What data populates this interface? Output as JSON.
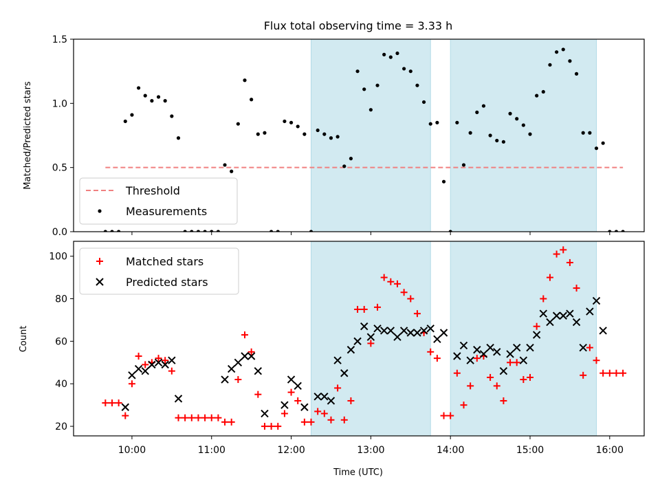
{
  "chart_data": [
    {
      "type": "scatter",
      "title": "Flux total observing time = 3.33 h",
      "ylabel": "Matched/Predicted stars",
      "ylim": [
        0,
        1.5
      ],
      "yticks": [
        0.0,
        0.5,
        1.0,
        1.5
      ],
      "ytick_labels": [
        "0.0",
        "0.5",
        "1.0",
        "1.5"
      ],
      "legend_position": "lower-left",
      "shaded_intervals": [
        [
          "12:15",
          "13:45"
        ],
        [
          "14:00",
          "15:50"
        ]
      ],
      "shade_color": "#add8e6",
      "threshold": {
        "name": "Threshold",
        "value": 0.5,
        "x_start": "09:40",
        "x_end": "16:10",
        "color": "#f08080"
      },
      "series": [
        {
          "name": "Measurements",
          "color": "#000000",
          "marker": "dot",
          "points": [
            [
              "09:40",
              0.0
            ],
            [
              "09:45",
              0.0
            ],
            [
              "09:50",
              0.0
            ],
            [
              "09:55",
              0.86
            ],
            [
              "10:00",
              0.91
            ],
            [
              "10:05",
              1.12
            ],
            [
              "10:10",
              1.06
            ],
            [
              "10:15",
              1.02
            ],
            [
              "10:20",
              1.05
            ],
            [
              "10:25",
              1.02
            ],
            [
              "10:30",
              0.9
            ],
            [
              "10:35",
              0.73
            ],
            [
              "10:40",
              0.0
            ],
            [
              "10:45",
              0.0
            ],
            [
              "10:50",
              0.0
            ],
            [
              "10:55",
              0.0
            ],
            [
              "11:00",
              0.0
            ],
            [
              "11:05",
              0.0
            ],
            [
              "11:10",
              0.52
            ],
            [
              "11:15",
              0.47
            ],
            [
              "11:20",
              0.84
            ],
            [
              "11:25",
              1.18
            ],
            [
              "11:30",
              1.03
            ],
            [
              "11:35",
              0.76
            ],
            [
              "11:40",
              0.77
            ],
            [
              "11:45",
              0.0
            ],
            [
              "11:50",
              0.0
            ],
            [
              "11:55",
              0.86
            ],
            [
              "12:00",
              0.85
            ],
            [
              "12:05",
              0.82
            ],
            [
              "12:10",
              0.76
            ],
            [
              "12:15",
              0.0
            ],
            [
              "12:20",
              0.79
            ],
            [
              "12:25",
              0.76
            ],
            [
              "12:30",
              0.73
            ],
            [
              "12:35",
              0.74
            ],
            [
              "12:40",
              0.51
            ],
            [
              "12:45",
              0.57
            ],
            [
              "12:50",
              1.25
            ],
            [
              "12:55",
              1.11
            ],
            [
              "13:00",
              0.95
            ],
            [
              "13:05",
              1.14
            ],
            [
              "13:10",
              1.38
            ],
            [
              "13:15",
              1.36
            ],
            [
              "13:20",
              1.39
            ],
            [
              "13:25",
              1.27
            ],
            [
              "13:30",
              1.25
            ],
            [
              "13:35",
              1.14
            ],
            [
              "13:40",
              1.01
            ],
            [
              "13:45",
              0.84
            ],
            [
              "13:50",
              0.85
            ],
            [
              "13:55",
              0.39
            ],
            [
              "14:00",
              0.0
            ],
            [
              "14:05",
              0.85
            ],
            [
              "14:10",
              0.52
            ],
            [
              "14:15",
              0.77
            ],
            [
              "14:20",
              0.93
            ],
            [
              "14:25",
              0.98
            ],
            [
              "14:30",
              0.75
            ],
            [
              "14:35",
              0.71
            ],
            [
              "14:40",
              0.7
            ],
            [
              "14:45",
              0.92
            ],
            [
              "14:50",
              0.88
            ],
            [
              "14:55",
              0.83
            ],
            [
              "15:00",
              0.76
            ],
            [
              "15:05",
              1.06
            ],
            [
              "15:10",
              1.09
            ],
            [
              "15:15",
              1.3
            ],
            [
              "15:20",
              1.4
            ],
            [
              "15:25",
              1.42
            ],
            [
              "15:30",
              1.33
            ],
            [
              "15:35",
              1.23
            ],
            [
              "15:40",
              0.77
            ],
            [
              "15:45",
              0.77
            ],
            [
              "15:50",
              0.65
            ],
            [
              "15:55",
              0.69
            ],
            [
              "16:00",
              0.0
            ],
            [
              "16:05",
              0.0
            ],
            [
              "16:10",
              0.0
            ]
          ]
        }
      ]
    },
    {
      "type": "scatter",
      "xlabel": "Time (UTC)",
      "ylabel": "Count",
      "ylim": [
        15.5,
        107
      ],
      "yticks": [
        20,
        40,
        60,
        80,
        100
      ],
      "ytick_labels": [
        "20",
        "40",
        "60",
        "80",
        "100"
      ],
      "xticks": [
        "10:00",
        "11:00",
        "12:00",
        "13:00",
        "14:00",
        "15:00",
        "16:00"
      ],
      "xtick_labels": [
        "10:00",
        "11:00",
        "12:00",
        "13:00",
        "14:00",
        "15:00",
        "16:00"
      ],
      "xlim": [
        "09:16",
        "16:26"
      ],
      "legend_position": "upper-left",
      "shaded_intervals": [
        [
          "12:15",
          "13:45"
        ],
        [
          "14:00",
          "15:50"
        ]
      ],
      "shade_color": "#add8e6",
      "series": [
        {
          "name": "Matched stars",
          "color": "#ff0000",
          "marker": "plus",
          "points": [
            [
              "09:40",
              31
            ],
            [
              "09:45",
              31
            ],
            [
              "09:50",
              31
            ],
            [
              "09:55",
              25
            ],
            [
              "10:00",
              40
            ],
            [
              "10:05",
              53
            ],
            [
              "10:10",
              49
            ],
            [
              "10:15",
              50
            ],
            [
              "10:20",
              52
            ],
            [
              "10:25",
              51
            ],
            [
              "10:30",
              46
            ],
            [
              "10:35",
              24
            ],
            [
              "10:40",
              24
            ],
            [
              "10:45",
              24
            ],
            [
              "10:50",
              24
            ],
            [
              "10:55",
              24
            ],
            [
              "11:00",
              24
            ],
            [
              "11:05",
              24
            ],
            [
              "11:10",
              22
            ],
            [
              "11:15",
              22
            ],
            [
              "11:20",
              42
            ],
            [
              "11:25",
              63
            ],
            [
              "11:30",
              55
            ],
            [
              "11:35",
              35
            ],
            [
              "11:40",
              20
            ],
            [
              "11:45",
              20
            ],
            [
              "11:50",
              20
            ],
            [
              "11:55",
              26
            ],
            [
              "12:00",
              36
            ],
            [
              "12:05",
              32
            ],
            [
              "12:10",
              22
            ],
            [
              "12:15",
              22
            ],
            [
              "12:20",
              27
            ],
            [
              "12:25",
              26
            ],
            [
              "12:30",
              23
            ],
            [
              "12:35",
              38
            ],
            [
              "12:40",
              23
            ],
            [
              "12:45",
              32
            ],
            [
              "12:50",
              75
            ],
            [
              "12:55",
              75
            ],
            [
              "13:00",
              59
            ],
            [
              "13:05",
              76
            ],
            [
              "13:10",
              90
            ],
            [
              "13:15",
              88
            ],
            [
              "13:20",
              87
            ],
            [
              "13:25",
              83
            ],
            [
              "13:30",
              80
            ],
            [
              "13:35",
              73
            ],
            [
              "13:40",
              64
            ],
            [
              "13:45",
              55
            ],
            [
              "13:50",
              52
            ],
            [
              "13:55",
              25
            ],
            [
              "14:00",
              25
            ],
            [
              "14:05",
              45
            ],
            [
              "14:10",
              30
            ],
            [
              "14:15",
              39
            ],
            [
              "14:20",
              52
            ],
            [
              "14:25",
              53
            ],
            [
              "14:30",
              43
            ],
            [
              "14:35",
              39
            ],
            [
              "14:40",
              32
            ],
            [
              "14:45",
              50
            ],
            [
              "14:50",
              50
            ],
            [
              "14:55",
              42
            ],
            [
              "15:00",
              43
            ],
            [
              "15:05",
              67
            ],
            [
              "15:10",
              80
            ],
            [
              "15:15",
              90
            ],
            [
              "15:20",
              101
            ],
            [
              "15:25",
              103
            ],
            [
              "15:30",
              97
            ],
            [
              "15:35",
              85
            ],
            [
              "15:40",
              44
            ],
            [
              "15:45",
              57
            ],
            [
              "15:50",
              51
            ],
            [
              "15:55",
              45
            ],
            [
              "16:00",
              45
            ],
            [
              "16:05",
              45
            ],
            [
              "16:10",
              45
            ]
          ]
        },
        {
          "name": "Predicted stars",
          "color": "#000000",
          "marker": "x",
          "points": [
            [
              "09:55",
              29
            ],
            [
              "10:00",
              44
            ],
            [
              "10:05",
              47
            ],
            [
              "10:10",
              46
            ],
            [
              "10:15",
              49
            ],
            [
              "10:20",
              50
            ],
            [
              "10:25",
              49
            ],
            [
              "10:30",
              51
            ],
            [
              "10:35",
              33
            ],
            [
              "11:10",
              42
            ],
            [
              "11:15",
              47
            ],
            [
              "11:20",
              50
            ],
            [
              "11:25",
              53
            ],
            [
              "11:30",
              53
            ],
            [
              "11:35",
              46
            ],
            [
              "11:40",
              26
            ],
            [
              "11:55",
              30
            ],
            [
              "12:00",
              42
            ],
            [
              "12:05",
              39
            ],
            [
              "12:10",
              29
            ],
            [
              "12:20",
              34
            ],
            [
              "12:25",
              34
            ],
            [
              "12:30",
              32
            ],
            [
              "12:35",
              51
            ],
            [
              "12:40",
              45
            ],
            [
              "12:45",
              56
            ],
            [
              "12:50",
              60
            ],
            [
              "12:55",
              67
            ],
            [
              "13:00",
              62
            ],
            [
              "13:05",
              66
            ],
            [
              "13:10",
              65
            ],
            [
              "13:15",
              65
            ],
            [
              "13:20",
              62
            ],
            [
              "13:25",
              65
            ],
            [
              "13:30",
              64
            ],
            [
              "13:35",
              64
            ],
            [
              "13:40",
              65
            ],
            [
              "13:45",
              66
            ],
            [
              "13:50",
              61
            ],
            [
              "13:55",
              64
            ],
            [
              "14:05",
              53
            ],
            [
              "14:10",
              58
            ],
            [
              "14:15",
              51
            ],
            [
              "14:20",
              56
            ],
            [
              "14:25",
              54
            ],
            [
              "14:30",
              57
            ],
            [
              "14:35",
              55
            ],
            [
              "14:40",
              46
            ],
            [
              "14:45",
              54
            ],
            [
              "14:50",
              57
            ],
            [
              "14:55",
              51
            ],
            [
              "15:00",
              57
            ],
            [
              "15:05",
              63
            ],
            [
              "15:10",
              73
            ],
            [
              "15:15",
              69
            ],
            [
              "15:20",
              72
            ],
            [
              "15:25",
              72
            ],
            [
              "15:30",
              73
            ],
            [
              "15:35",
              69
            ],
            [
              "15:40",
              57
            ],
            [
              "15:45",
              74
            ],
            [
              "15:50",
              79
            ],
            [
              "15:55",
              65
            ]
          ]
        }
      ]
    }
  ]
}
